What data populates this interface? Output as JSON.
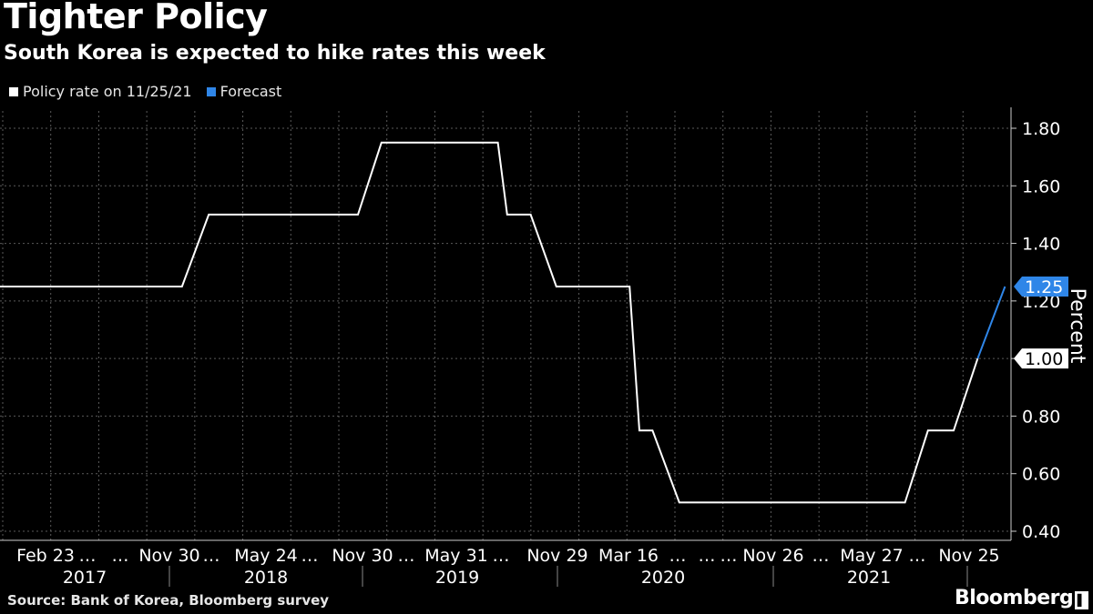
{
  "header": {
    "title": "Tighter Policy",
    "subtitle": "South Korea is expected to hike rates this week"
  },
  "legend": [
    {
      "label": "Policy rate on 11/25/21",
      "color": "#ffffff"
    },
    {
      "label": "Forecast",
      "color": "#2f86e8"
    }
  ],
  "footer": {
    "source": "Source: Bank of Korea, Bloomberg survey",
    "brand": "Bloomberg"
  },
  "chart_data": {
    "type": "line",
    "title": "Tighter Policy",
    "subtitle": "South Korea is expected to hike rates this week",
    "ylabel": "Percent",
    "ylim": [
      0.4,
      1.8
    ],
    "yticks": [
      "0.40",
      "0.60",
      "0.80",
      "1.00",
      "1.20",
      "1.40",
      "1.60",
      "1.80"
    ],
    "grid": true,
    "legend_position": "top-left",
    "x_tick_labels": [
      "Feb 23",
      "…",
      "…",
      "Nov 30",
      "…",
      "May 24",
      "…",
      "Nov 30",
      "…",
      "May 31",
      "…",
      "Nov 29",
      "Mar 16",
      "…",
      "…",
      "…",
      "Nov 26",
      "…",
      "May 27",
      "…",
      "Nov 25"
    ],
    "year_labels": [
      "2017",
      "2018",
      "2019",
      "2020",
      "2021"
    ],
    "series": [
      {
        "name": "Policy rate on 11/25/21",
        "color": "#ffffff",
        "x": [
          "2017-01-01",
          "2017-11-30",
          "2018-01-18",
          "2018-10-18",
          "2018-11-30",
          "2019-07-01",
          "2019-07-18",
          "2019-08-30",
          "2019-10-16",
          "2020-02-27",
          "2020-03-16",
          "2020-04-09",
          "2020-05-28",
          "2021-07-15",
          "2021-08-26",
          "2021-10-12",
          "2021-11-25"
        ],
        "values": [
          1.25,
          1.25,
          1.5,
          1.5,
          1.75,
          1.75,
          1.5,
          1.5,
          1.25,
          1.25,
          0.75,
          0.75,
          0.5,
          0.5,
          0.75,
          0.75,
          1.0
        ]
      },
      {
        "name": "Forecast",
        "color": "#2f86e8",
        "x": [
          "2021-11-25",
          "2022-01-14"
        ],
        "values": [
          1.0,
          1.25
        ]
      }
    ],
    "value_labels": [
      {
        "value": 1.25,
        "text": "1.25",
        "color": "#2f86e8",
        "text_color": "#ffffff"
      },
      {
        "value": 1.0,
        "text": "1.00",
        "color": "#ffffff",
        "text_color": "#000000"
      }
    ]
  }
}
